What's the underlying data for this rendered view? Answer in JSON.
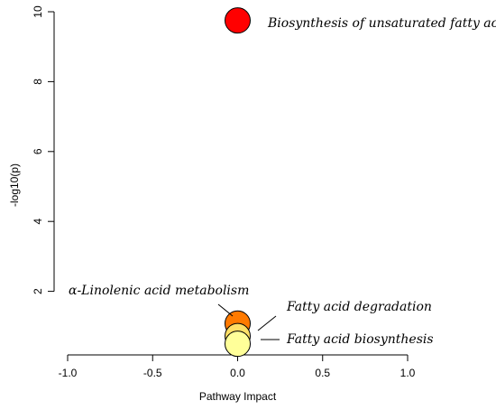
{
  "chart_data": {
    "type": "scatter",
    "xlabel": "Pathway Impact",
    "ylabel": "-log10(p)",
    "xlim": [
      -1.0,
      1.0
    ],
    "ylim": [
      0,
      10
    ],
    "x_ticks": [
      "-1.0",
      "-0.5",
      "0.0",
      "0.5",
      "1.0"
    ],
    "y_ticks": [
      "2",
      "4",
      "6",
      "8",
      "10"
    ],
    "grid": false,
    "points": [
      {
        "label": "Biosynthesis of unsaturated fatty acids",
        "x": 0.0,
        "y": 9.75,
        "color": "#ff0000"
      },
      {
        "label": "α-Linolenic acid metabolism",
        "x": 0.0,
        "y": 1.08,
        "color": "#ff7a00"
      },
      {
        "label": "Fatty acid degradation",
        "x": 0.0,
        "y": 0.72,
        "color": "#ffe066"
      },
      {
        "label": "Fatty acid biosynthesis",
        "x": 0.0,
        "y": 0.5,
        "color": "#ffff99"
      }
    ]
  }
}
